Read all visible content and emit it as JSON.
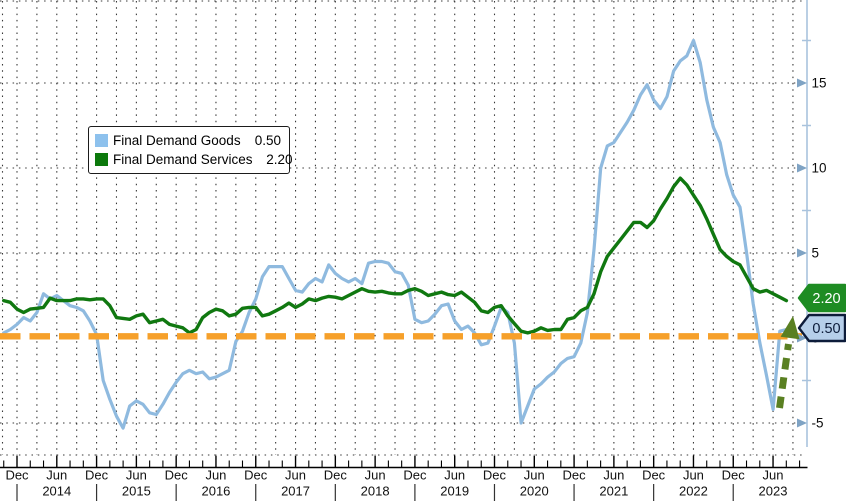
{
  "chart_data": {
    "type": "line",
    "x_unit": "month",
    "x_start_label": "Oct 2013",
    "x_end_label": "Aug 2023",
    "x_axis": {
      "month_labels": [
        "Dec",
        "Jun"
      ],
      "years": [
        "2014",
        "2015",
        "2016",
        "2017",
        "2018",
        "2019",
        "2020",
        "2021",
        "2022",
        "2023"
      ]
    },
    "y_axis": {
      "side": "right",
      "ticks": [
        "15",
        "10",
        "5",
        "0",
        "-5"
      ],
      "tick_values": [
        15,
        10,
        5,
        0,
        -5
      ],
      "minor_tick_values": [
        17.5,
        12.5,
        7.5,
        2.5,
        -2.5
      ],
      "visible_range": [
        -6.9,
        19.8
      ]
    },
    "grid": {
      "style": "dotted",
      "vertical_every_months": 3,
      "horizontal_every": 5
    },
    "series": [
      {
        "name": "Final Demand Goods",
        "color": "#8fbadf",
        "last_value": "0.50",
        "values": [
          0.3,
          0.5,
          0.8,
          1.2,
          1.0,
          1.5,
          2.6,
          2.3,
          2.5,
          2.2,
          1.9,
          1.8,
          1.6,
          1.0,
          0.2,
          -2.5,
          -3.6,
          -4.6,
          -5.3,
          -4.0,
          -3.7,
          -3.9,
          -4.4,
          -4.5,
          -3.9,
          -3.2,
          -2.6,
          -2.1,
          -1.9,
          -2.1,
          -2.0,
          -2.4,
          -2.3,
          -2.1,
          -1.9,
          -0.2,
          0.4,
          1.5,
          2.3,
          3.6,
          4.2,
          4.2,
          4.2,
          3.5,
          2.8,
          2.7,
          3.2,
          3.5,
          3.3,
          4.3,
          3.8,
          3.5,
          3.3,
          3.5,
          3.2,
          4.4,
          4.5,
          4.5,
          4.4,
          3.9,
          3.8,
          3.1,
          1.1,
          0.9,
          1.0,
          1.4,
          1.9,
          2.0,
          1.0,
          0.5,
          0.7,
          0.3,
          -0.4,
          -0.3,
          0.7,
          1.8,
          1.5,
          -0.3,
          -5.0,
          -4.0,
          -3.0,
          -2.7,
          -2.3,
          -2.0,
          -1.5,
          -1.2,
          -1.1,
          -0.3,
          1.5,
          5.2,
          10.0,
          11.3,
          11.5,
          12.1,
          12.7,
          13.4,
          14.3,
          14.9,
          14.0,
          13.5,
          14.2,
          15.7,
          16.3,
          16.6,
          17.5,
          16.2,
          14.0,
          12.4,
          11.5,
          9.6,
          8.4,
          7.7,
          5.0,
          2.0,
          -0.3,
          -2.2,
          -4.2,
          0.4,
          0.5
        ]
      },
      {
        "name": "Final Demand Services",
        "color": "#107810",
        "last_value": "2.20",
        "values": [
          2.2,
          2.1,
          1.7,
          1.5,
          1.7,
          1.75,
          1.8,
          2.35,
          2.2,
          2.2,
          2.2,
          2.3,
          2.3,
          2.25,
          2.3,
          2.3,
          1.9,
          1.2,
          1.15,
          1.1,
          1.3,
          1.4,
          0.9,
          1.0,
          1.1,
          0.8,
          0.7,
          0.6,
          0.3,
          0.5,
          1.2,
          1.5,
          1.7,
          1.6,
          1.3,
          1.4,
          1.75,
          1.8,
          1.8,
          1.3,
          1.4,
          1.6,
          1.8,
          2.05,
          1.8,
          2.0,
          2.3,
          2.2,
          2.35,
          2.45,
          2.4,
          2.3,
          2.5,
          2.7,
          2.9,
          2.75,
          2.7,
          2.75,
          2.65,
          2.6,
          2.6,
          2.8,
          2.9,
          2.75,
          2.5,
          2.6,
          2.7,
          2.55,
          2.5,
          2.7,
          2.4,
          2.1,
          1.6,
          1.5,
          1.8,
          1.9,
          1.3,
          0.85,
          0.4,
          0.3,
          0.4,
          0.6,
          0.45,
          0.5,
          0.5,
          1.1,
          1.2,
          1.6,
          1.8,
          2.6,
          3.9,
          4.8,
          5.3,
          5.8,
          6.3,
          6.8,
          6.8,
          6.5,
          6.9,
          7.6,
          8.2,
          8.9,
          9.4,
          9.0,
          8.4,
          7.8,
          7.0,
          6.1,
          5.2,
          4.8,
          4.5,
          4.3,
          3.6,
          2.9,
          2.7,
          2.8,
          2.6,
          2.4,
          2.2
        ]
      }
    ],
    "reference_line": {
      "orientation": "horizontal",
      "value": 0.1,
      "color": "#f6a02a",
      "style": "dashed",
      "thickness": 6.4
    },
    "annotations": {
      "arrow": {
        "direction": "up",
        "style": "dashed-shaft-solid-head",
        "color": "#5a8022"
      },
      "badges": [
        {
          "label": "2.20",
          "fill": "#1e8c23",
          "text_color": "#ffffff",
          "border_color": "#1e8c23",
          "value": 2.2
        },
        {
          "label": "0.50",
          "fill": "#b6cfea",
          "text_color": "#0d1c3a",
          "border_color": "#0d1c3a",
          "value": 0.5
        }
      ]
    },
    "colors": {
      "grid_dot": "#222222",
      "axis_line_right": "#a9c3dd",
      "axis_pointer": "#7fa3c4",
      "axis_line_bottom": "#000000",
      "tick_text": "#111111"
    }
  },
  "legend": {
    "items": [
      {
        "label": "Final Demand Goods",
        "value": "0.50",
        "swatch_color": "#8dc1ed"
      },
      {
        "label": "Final Demand Services",
        "value": "2.20",
        "swatch_color": "#0c790c"
      }
    ]
  }
}
